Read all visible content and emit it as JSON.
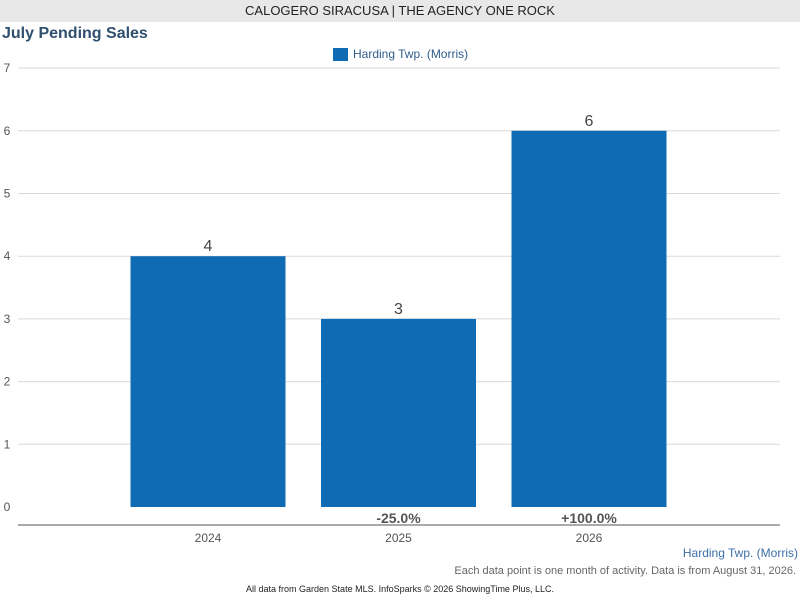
{
  "header": {
    "agent": "CALOGERO SIRACUSA | THE AGENCY ONE ROCK"
  },
  "chart_data": {
    "type": "bar",
    "title": "July Pending Sales",
    "categories": [
      "2024",
      "2025",
      "2026"
    ],
    "series": [
      {
        "name": "Harding Twp. (Morris)",
        "values": [
          4,
          3,
          6
        ],
        "color": "#106bb5"
      }
    ],
    "data_labels": [
      "4",
      "3",
      "6"
    ],
    "change_labels": [
      "",
      "-25.0%",
      "+100.0%"
    ],
    "yticks": [
      "0",
      "1",
      "2",
      "3",
      "4",
      "5",
      "6",
      "7"
    ],
    "ylim": [
      0,
      7
    ],
    "grid": true,
    "legend_position": "top-center",
    "xlabel": "",
    "ylabel": ""
  },
  "footer": {
    "series_label": "Harding Twp. (Morris)",
    "note": "Each data point is one month of activity. Data is from August 31, 2026.",
    "copyright": "All data from Garden State MLS. InfoSparks © 2026 ShowingTime Plus, LLC."
  }
}
